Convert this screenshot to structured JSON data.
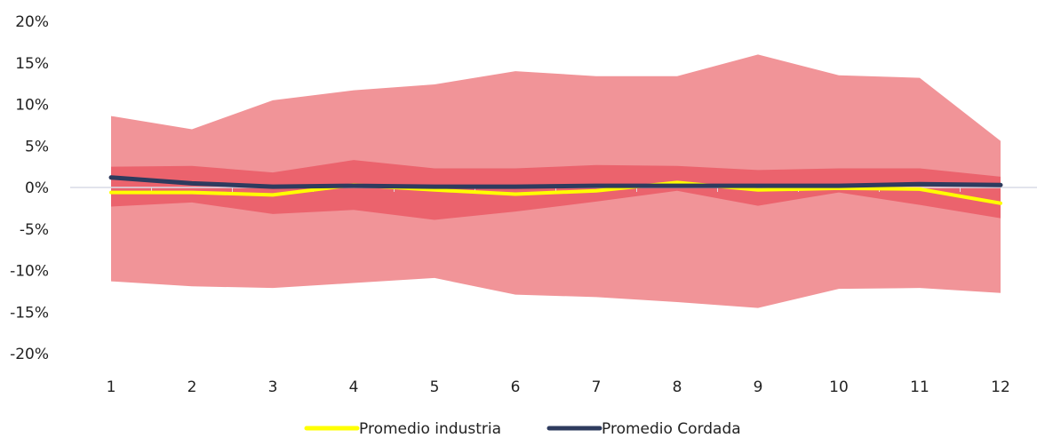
{
  "chart_data": {
    "type": "area",
    "x": [
      1,
      2,
      3,
      4,
      5,
      6,
      7,
      8,
      9,
      10,
      11,
      12
    ],
    "ylim": [
      -20,
      20
    ],
    "y_ticks": [
      "20%",
      "15%",
      "10%",
      "5%",
      "0%",
      "-5%",
      "-10%",
      "-15%",
      "-20%"
    ],
    "y_tick_values": [
      20,
      15,
      10,
      5,
      0,
      -5,
      -10,
      -15,
      -20
    ],
    "x_ticks": [
      "1",
      "2",
      "3",
      "4",
      "5",
      "6",
      "7",
      "8",
      "9",
      "10",
      "11",
      "12"
    ],
    "grid": false,
    "legend_position": "bottom",
    "bands": [
      {
        "upper": [
          8.6,
          7.0,
          10.5,
          11.7,
          12.4,
          14.0,
          13.4,
          13.4,
          16.0,
          13.5,
          13.2,
          5.6
        ],
        "lower": [
          -11.3,
          -11.9,
          -12.1,
          -11.5,
          -10.9,
          -12.9,
          -13.2,
          -13.8,
          -14.5,
          -12.2,
          -12.1,
          -12.7
        ],
        "color": "#f19498"
      },
      {
        "upper": [
          2.5,
          2.6,
          1.8,
          3.3,
          2.3,
          2.3,
          2.7,
          2.6,
          2.1,
          2.3,
          2.3,
          1.3
        ],
        "lower": [
          -2.3,
          -1.8,
          -3.2,
          -2.7,
          -3.9,
          -2.9,
          -1.7,
          -0.4,
          -2.2,
          -0.6,
          -2.1,
          -3.7
        ],
        "color": "#eb636d"
      }
    ],
    "series": [
      {
        "name": "Promedio industria",
        "values": [
          -0.6,
          -0.6,
          -0.9,
          0.3,
          -0.3,
          -0.8,
          -0.4,
          0.6,
          -0.3,
          -0.1,
          -0.2,
          -1.9
        ],
        "color": "#ffff00"
      },
      {
        "name": "Promedio Cordada",
        "values": [
          1.2,
          0.5,
          0.1,
          0.2,
          0.1,
          0.1,
          0.2,
          0.2,
          0.2,
          0.2,
          0.4,
          0.3
        ],
        "color": "#2e3b5e"
      }
    ]
  }
}
